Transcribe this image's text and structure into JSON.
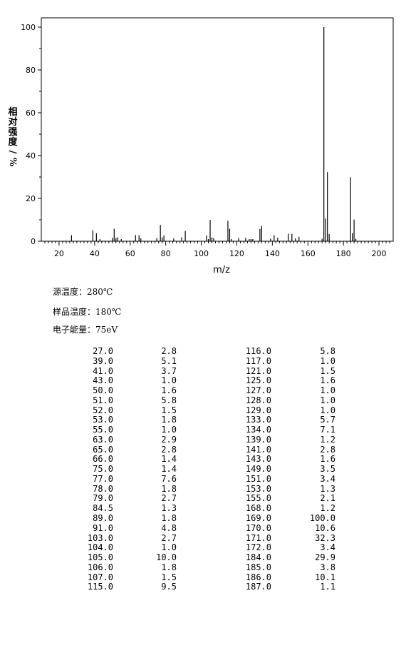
{
  "chart_data": {
    "type": "bar",
    "xlabel": "m/z",
    "ylabel": "相对强度/%",
    "xlim": [
      10,
      208
    ],
    "ylim": [
      0,
      100
    ],
    "xticks": [
      20,
      40,
      60,
      80,
      100,
      120,
      140,
      160,
      180,
      200
    ],
    "yticks": [
      0,
      20,
      40,
      60,
      80,
      100
    ],
    "grid": false,
    "peaks": [
      {
        "mz": 27.0,
        "intensity": 2.8
      },
      {
        "mz": 39.0,
        "intensity": 5.1
      },
      {
        "mz": 41.0,
        "intensity": 3.7
      },
      {
        "mz": 43.0,
        "intensity": 1.0
      },
      {
        "mz": 50.0,
        "intensity": 1.6
      },
      {
        "mz": 51.0,
        "intensity": 5.8
      },
      {
        "mz": 52.0,
        "intensity": 1.5
      },
      {
        "mz": 53.0,
        "intensity": 1.8
      },
      {
        "mz": 55.0,
        "intensity": 1.0
      },
      {
        "mz": 63.0,
        "intensity": 2.9
      },
      {
        "mz": 65.0,
        "intensity": 2.8
      },
      {
        "mz": 66.0,
        "intensity": 1.4
      },
      {
        "mz": 75.0,
        "intensity": 1.4
      },
      {
        "mz": 77.0,
        "intensity": 7.6
      },
      {
        "mz": 78.0,
        "intensity": 1.8
      },
      {
        "mz": 79.0,
        "intensity": 2.7
      },
      {
        "mz": 84.5,
        "intensity": 1.3
      },
      {
        "mz": 89.0,
        "intensity": 1.8
      },
      {
        "mz": 91.0,
        "intensity": 4.8
      },
      {
        "mz": 103.0,
        "intensity": 2.7
      },
      {
        "mz": 104.0,
        "intensity": 1.0
      },
      {
        "mz": 105.0,
        "intensity": 10.0
      },
      {
        "mz": 106.0,
        "intensity": 1.8
      },
      {
        "mz": 107.0,
        "intensity": 1.5
      },
      {
        "mz": 115.0,
        "intensity": 9.5
      },
      {
        "mz": 116.0,
        "intensity": 5.8
      },
      {
        "mz": 117.0,
        "intensity": 1.0
      },
      {
        "mz": 121.0,
        "intensity": 1.5
      },
      {
        "mz": 125.0,
        "intensity": 1.6
      },
      {
        "mz": 127.0,
        "intensity": 1.0
      },
      {
        "mz": 128.0,
        "intensity": 1.0
      },
      {
        "mz": 129.0,
        "intensity": 1.0
      },
      {
        "mz": 133.0,
        "intensity": 5.7
      },
      {
        "mz": 134.0,
        "intensity": 7.1
      },
      {
        "mz": 139.0,
        "intensity": 1.2
      },
      {
        "mz": 141.0,
        "intensity": 2.8
      },
      {
        "mz": 143.0,
        "intensity": 1.6
      },
      {
        "mz": 149.0,
        "intensity": 3.5
      },
      {
        "mz": 151.0,
        "intensity": 3.4
      },
      {
        "mz": 153.0,
        "intensity": 1.3
      },
      {
        "mz": 155.0,
        "intensity": 2.1
      },
      {
        "mz": 168.0,
        "intensity": 1.2
      },
      {
        "mz": 169.0,
        "intensity": 100.0
      },
      {
        "mz": 170.0,
        "intensity": 10.6
      },
      {
        "mz": 171.0,
        "intensity": 32.3
      },
      {
        "mz": 172.0,
        "intensity": 3.4
      },
      {
        "mz": 184.0,
        "intensity": 29.9
      },
      {
        "mz": 185.0,
        "intensity": 3.8
      },
      {
        "mz": 186.0,
        "intensity": 10.1
      },
      {
        "mz": 187.0,
        "intensity": 1.1
      }
    ]
  },
  "conditions": {
    "source_temp": "源温度：280℃",
    "sample_temp": "样品温度：180℃",
    "electron_energy": "电子能量：75eV"
  },
  "table": {
    "rows": [
      [
        "27.0",
        "2.8",
        "116.0",
        "5.8"
      ],
      [
        "39.0",
        "5.1",
        "117.0",
        "1.0"
      ],
      [
        "41.0",
        "3.7",
        "121.0",
        "1.5"
      ],
      [
        "43.0",
        "1.0",
        "125.0",
        "1.6"
      ],
      [
        "50.0",
        "1.6",
        "127.0",
        "1.0"
      ],
      [
        "51.0",
        "5.8",
        "128.0",
        "1.0"
      ],
      [
        "52.0",
        "1.5",
        "129.0",
        "1.0"
      ],
      [
        "53.0",
        "1.8",
        "133.0",
        "5.7"
      ],
      [
        "55.0",
        "1.0",
        "134.0",
        "7.1"
      ],
      [
        "63.0",
        "2.9",
        "139.0",
        "1.2"
      ],
      [
        "65.0",
        "2.8",
        "141.0",
        "2.8"
      ],
      [
        "66.0",
        "1.4",
        "143.0",
        "1.6"
      ],
      [
        "75.0",
        "1.4",
        "149.0",
        "3.5"
      ],
      [
        "77.0",
        "7.6",
        "151.0",
        "3.4"
      ],
      [
        "78.0",
        "1.8",
        "153.0",
        "1.3"
      ],
      [
        "79.0",
        "2.7",
        "155.0",
        "2.1"
      ],
      [
        "84.5",
        "1.3",
        "168.0",
        "1.2"
      ],
      [
        "89.0",
        "1.8",
        "169.0",
        "100.0"
      ],
      [
        "91.0",
        "4.8",
        "170.0",
        "10.6"
      ],
      [
        "103.0",
        "2.7",
        "171.0",
        "32.3"
      ],
      [
        "104.0",
        "1.0",
        "172.0",
        "3.4"
      ],
      [
        "105.0",
        "10.0",
        "184.0",
        "29.9"
      ],
      [
        "106.0",
        "1.8",
        "185.0",
        "3.8"
      ],
      [
        "107.0",
        "1.5",
        "186.0",
        "10.1"
      ],
      [
        "115.0",
        "9.5",
        "187.0",
        "1.1"
      ]
    ]
  }
}
